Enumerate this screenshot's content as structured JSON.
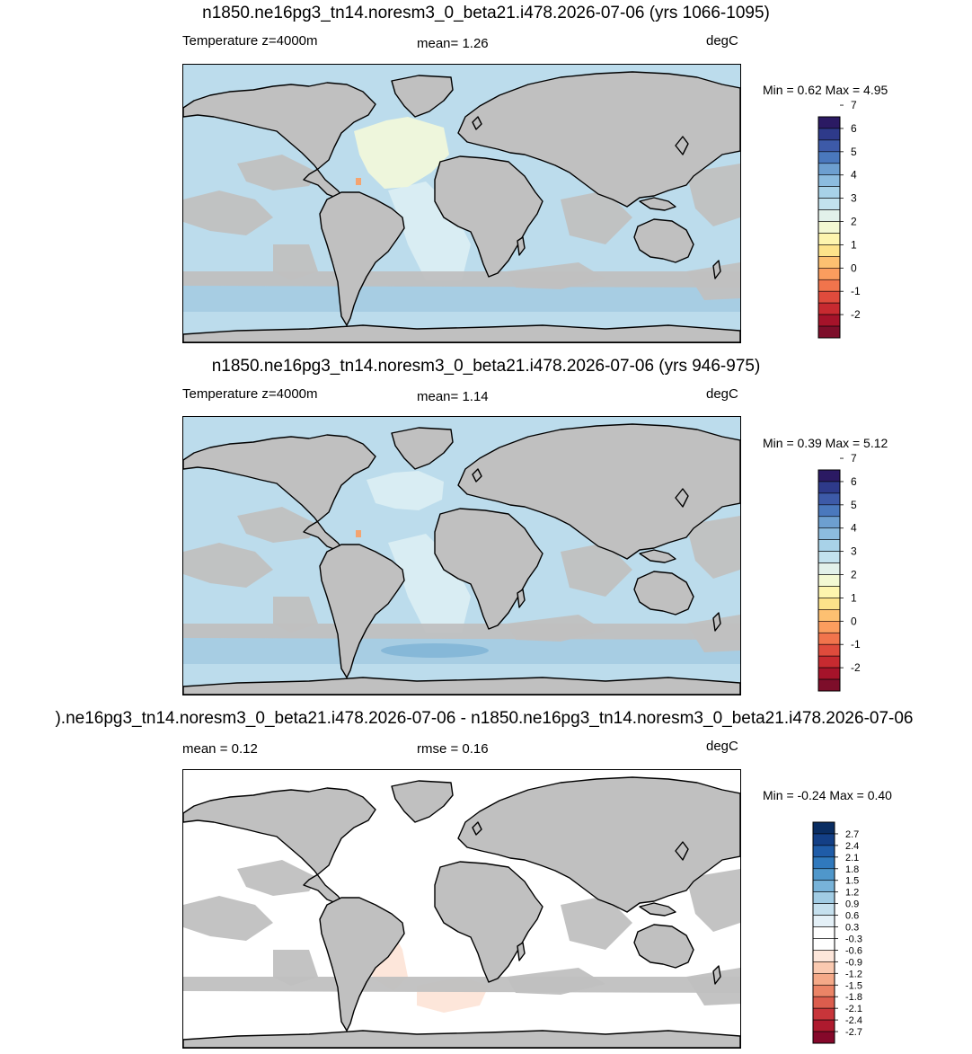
{
  "panels": [
    {
      "title": "n1850.ne16pg3_tn14.noresm3_0_beta21.i478.2026-07-06 (yrs 1066-1095)",
      "left_label": "Temperature z=4000m",
      "center_label": "mean=   1.26",
      "right_label": "degC",
      "minmax": "Min =   0.62 Max =   4.95",
      "variant": "a"
    },
    {
      "title": "n1850.ne16pg3_tn14.noresm3_0_beta21.i478.2026-07-06 (yrs 946-975)",
      "left_label": "Temperature z=4000m",
      "center_label": "mean=   1.14",
      "right_label": "degC",
      "minmax": "Min =   0.39 Max =   5.12",
      "variant": "b"
    },
    {
      "title": ").ne16pg3_tn14.noresm3_0_beta21.i478.2026-07-06 - n1850.ne16pg3_tn14.noresm3_0_beta21.i478.2026-07-06",
      "left_label": "mean =   0.12",
      "center_label": "rmse =   0.16",
      "right_label": "degC",
      "minmax": "Min =  -0.24 Max =   0.40",
      "variant": "diff"
    }
  ],
  "colorbars": {
    "abs": {
      "colors": [
        "#2b1a63",
        "#2e3a8a",
        "#3d5aa8",
        "#4a78bd",
        "#6d9fd0",
        "#8cbcdf",
        "#a8d2e8",
        "#c2e2ee",
        "#e2f1ea",
        "#f3f9d3",
        "#fdf5ae",
        "#fde38a",
        "#fdc071",
        "#fb9d5e",
        "#f1744c",
        "#df4b3c",
        "#c72a30",
        "#a5132a",
        "#7d0e2a"
      ],
      "labels": [
        "-2",
        "-1",
        "0",
        "1",
        "2",
        "3",
        "4",
        "5",
        "6",
        "7"
      ]
    },
    "diff": {
      "colors": [
        "#0a2d62",
        "#133f86",
        "#1f5ca8",
        "#3079bd",
        "#4f97cb",
        "#78b3d9",
        "#a1cce4",
        "#c5e0ee",
        "#e4f0f7",
        "#ffffff",
        "#ffffff",
        "#fde6da",
        "#fac9b0",
        "#f5a988",
        "#eb8466",
        "#dc5d4d",
        "#c8353a",
        "#ae1a2e",
        "#85082a"
      ],
      "labels": [
        "-2.7",
        "-2.4",
        "-2.1",
        "-1.8",
        "-1.5",
        "-1.2",
        "-0.9",
        "-0.6",
        "-0.3",
        "0.3",
        "0.6",
        "0.9",
        "1.2",
        "1.5",
        "1.8",
        "2.1",
        "2.4",
        "2.7"
      ]
    }
  },
  "map_colors": {
    "land": "#c0c0c0",
    "ocean_abs": "#bcdcec",
    "ocean_abs_deep": "#a7cde3",
    "ocean_warm": "#eef6dc",
    "ocean_mid": "#d9edf3",
    "ocean_diff": "#ffffff",
    "ocean_diff_pos": "#fde6da",
    "hotspot": "#f4a470"
  }
}
